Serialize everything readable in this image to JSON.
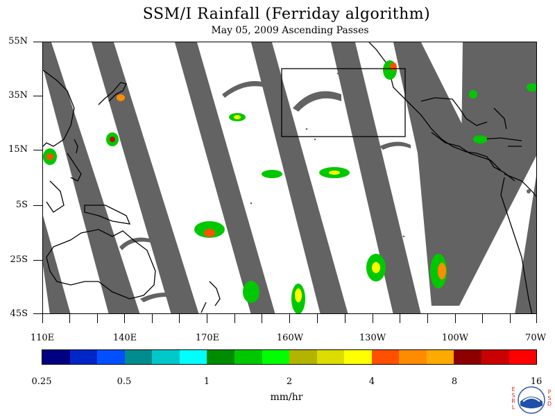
{
  "title": "SSM/I Rainfall (Ferriday algorithm)",
  "subtitle": "May 05, 2009  Ascending Passes",
  "map": {
    "lat_labels": [
      "55N",
      "35N",
      "15N",
      "5S",
      "25S",
      "45S"
    ],
    "lon_labels": [
      "110E",
      "140E",
      "170E",
      "160W",
      "130W",
      "100W",
      "70W"
    ],
    "colors": {
      "no_data_swath_gap": "#636363",
      "coastline": "#000000",
      "highlight_box": "#000000"
    }
  },
  "colorbar": {
    "labels": [
      "0.25",
      "0.5",
      "1",
      "2",
      "4",
      "8",
      "16"
    ],
    "colors": [
      "#000080",
      "#0026c8",
      "#0050ff",
      "#008c8c",
      "#00c8c8",
      "#00ffff",
      "#008c00",
      "#00c800",
      "#00ff00",
      "#b4b400",
      "#dcdc00",
      "#ffff00",
      "#ff5000",
      "#ff8c00",
      "#ffaa00",
      "#8c0000",
      "#c80000",
      "#ff0000"
    ],
    "units": "mm/hr"
  },
  "logo": {
    "left_letters": "ESRL",
    "right_letters": "PSD",
    "name": "NOAA"
  }
}
